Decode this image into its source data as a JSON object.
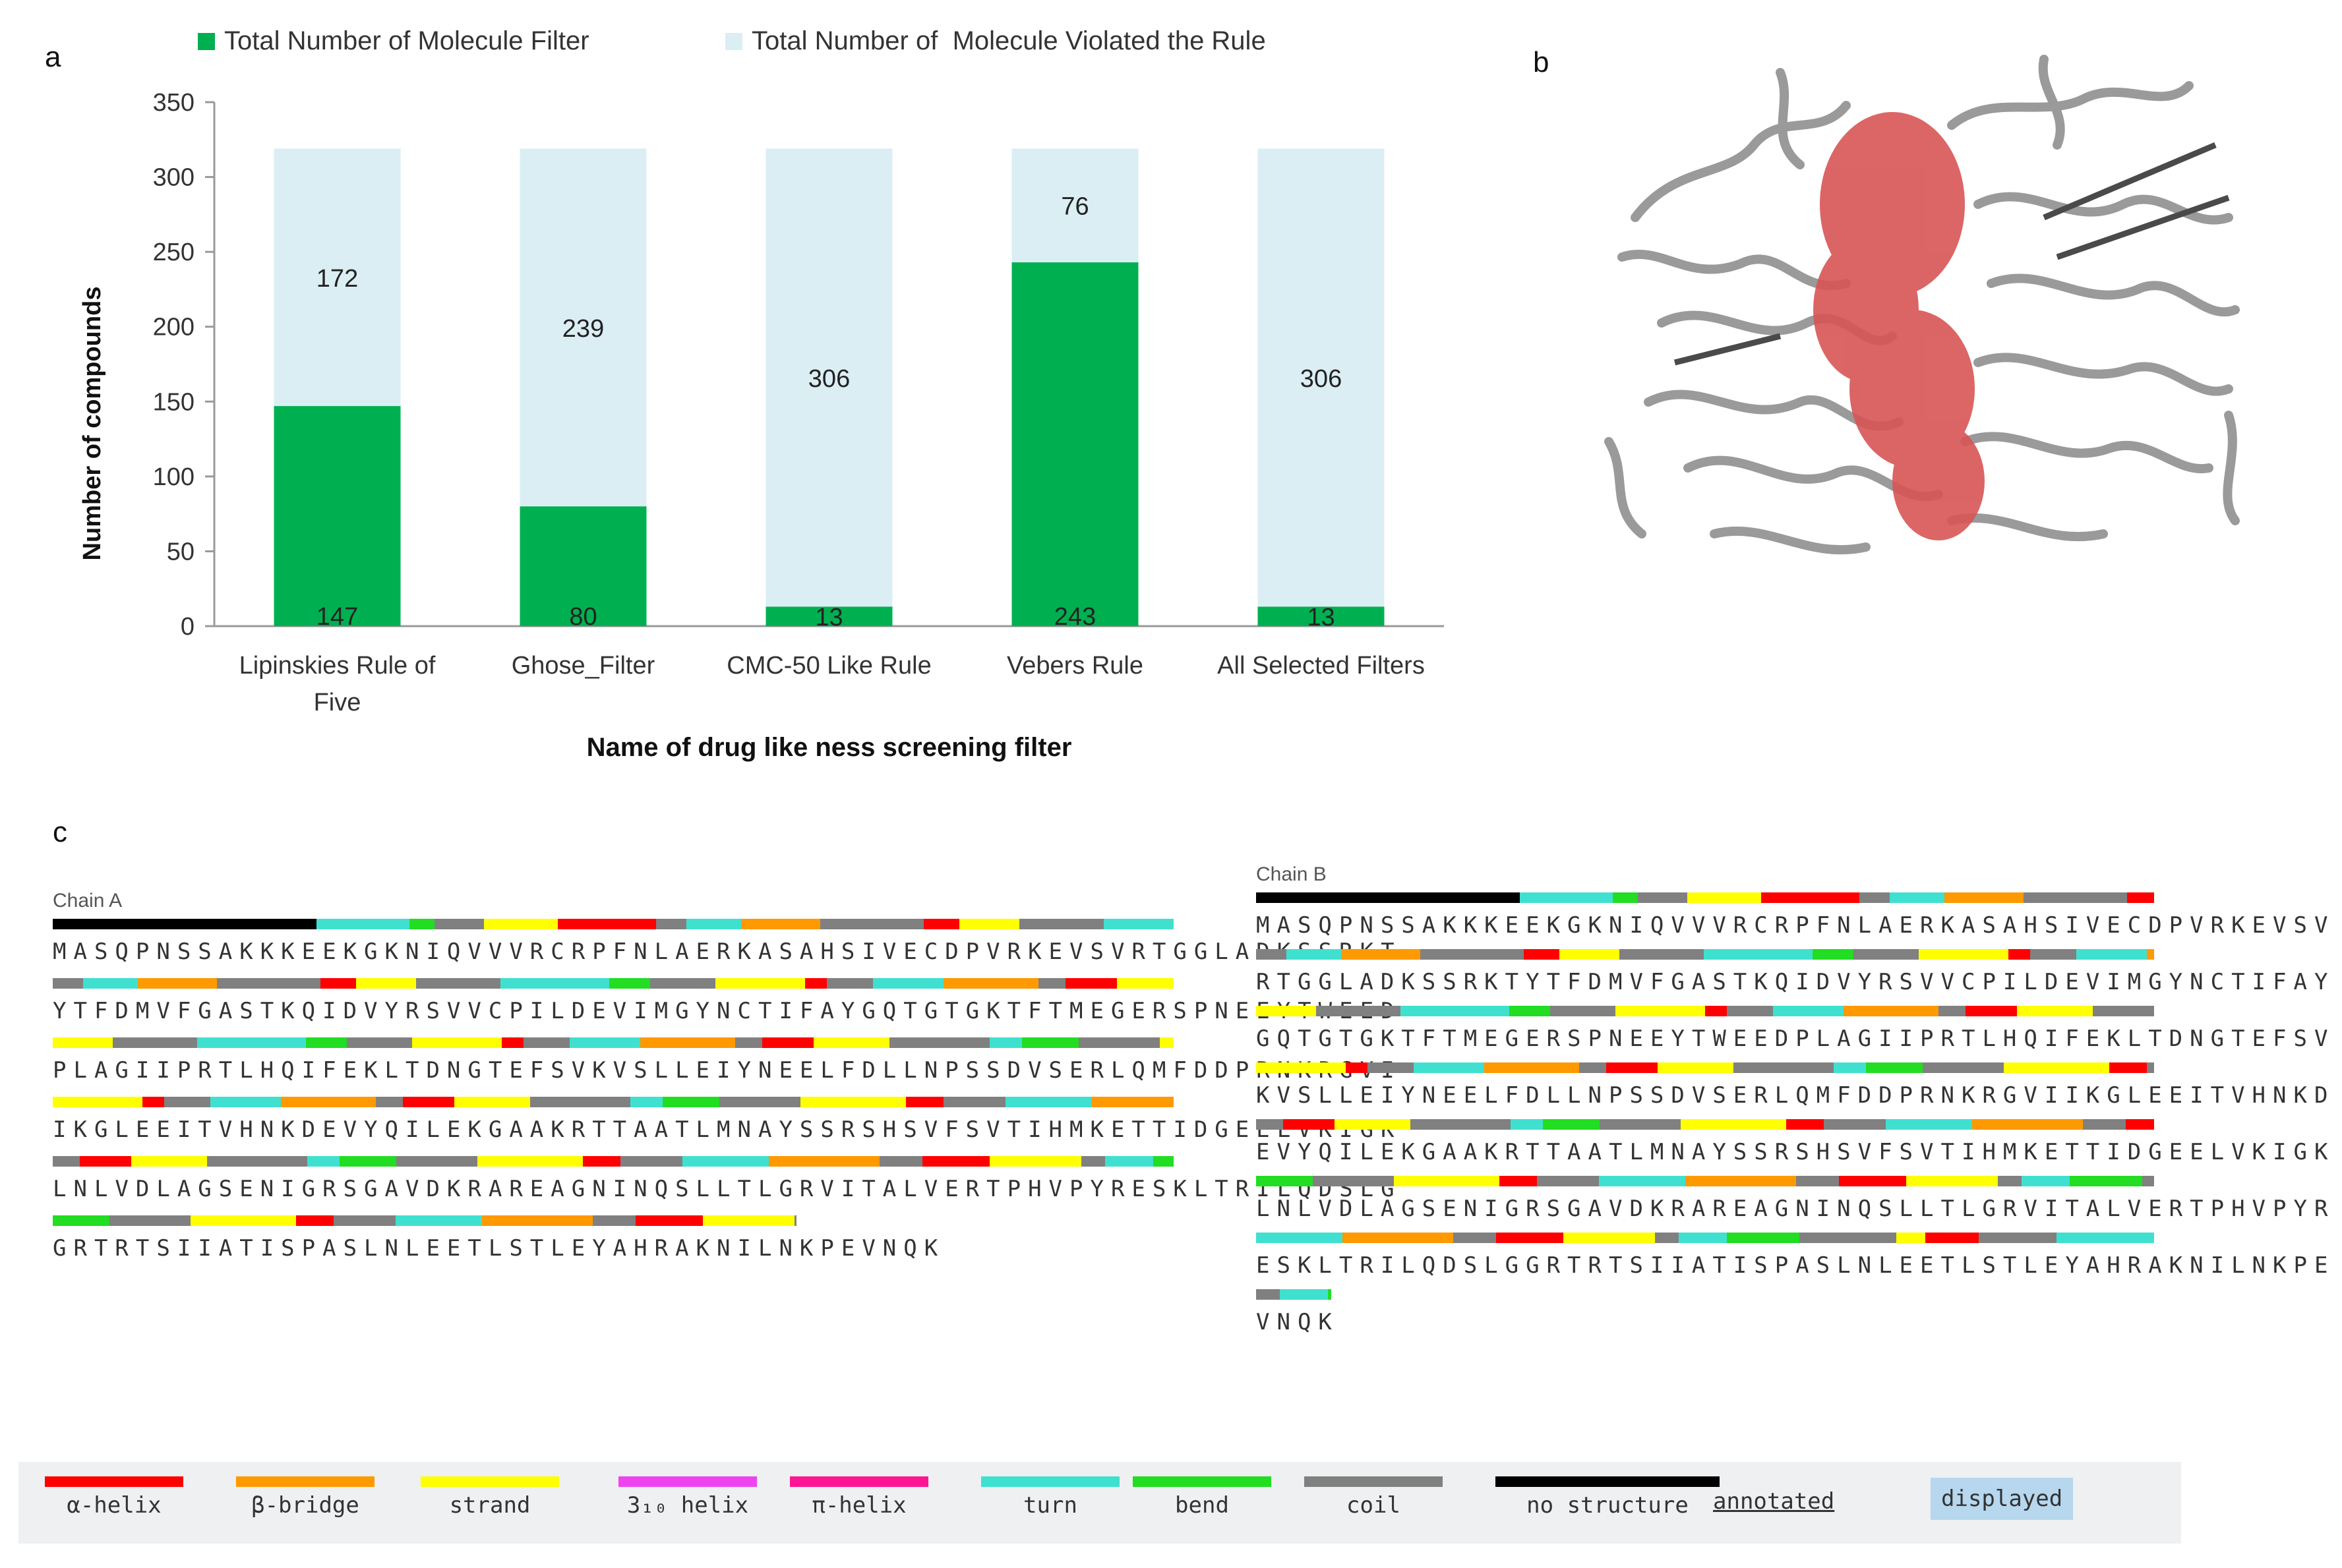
{
  "panels": {
    "a": "a",
    "b": "b",
    "c": "c"
  },
  "colors": {
    "filter": "#00b050",
    "violated": "#dbeef4",
    "alpha_helix": "#ff0000",
    "beta_bridge": "#ff9900",
    "strand": "#ffff00",
    "helix_310": "#ee44ee",
    "pi_helix": "#ff1493",
    "turn": "#40e0d0",
    "bend": "#22dd22",
    "coil": "#808080",
    "no_structure": "#000000",
    "displayed": "#b6d7ee",
    "protein": "#a0a0a0",
    "ligand": "#e06060"
  },
  "chart_data": {
    "type": "bar",
    "stacked": true,
    "categories": [
      "Lipinskies Rule of Five",
      "Ghose_Filter",
      "CMC-50 Like Rule",
      "Vebers Rule",
      "All Selected Filters"
    ],
    "category_lines": [
      [
        "Lipinskies Rule of",
        "Five"
      ],
      [
        "Ghose_Filter"
      ],
      [
        "CMC-50 Like Rule"
      ],
      [
        "Vebers Rule"
      ],
      [
        "All Selected Filters"
      ]
    ],
    "series": [
      {
        "name": "Total Number of Molecule Filter",
        "values": [
          147,
          80,
          13,
          243,
          13
        ]
      },
      {
        "name": "Total Number of  Molecule Violated the Rule",
        "values": [
          172,
          239,
          306,
          76,
          306
        ]
      }
    ],
    "labels_series_0": [
      "147",
      "80",
      "13",
      "243",
      "13"
    ],
    "labels_series_1": [
      "172",
      "239",
      "306",
      "76",
      "306"
    ],
    "xlabel": "Name of drug like ness screening filter",
    "ylabel": "Number of compounds",
    "ylim": [
      0,
      350
    ],
    "yticks": [
      "0",
      "50",
      "100",
      "150",
      "200",
      "250",
      "300",
      "350"
    ],
    "legend_position": "top"
  },
  "legend": [
    {
      "label": "Total Number of Molecule Filter"
    },
    {
      "label": "Total Number of  Molecule Violated the Rule"
    }
  ],
  "sequence_panel": {
    "chain_a": {
      "title": "Chain A",
      "lines": [
        "MASQPNSSAKKKEEKGKNIQVVVRCRPFNLAERKASAHSIVECDPVRKEVSVRTGGLADKSSRKT",
        "YTFDMVFGASTKQIDVYRSVVCPILDEVIMGYNCTIFAYGQTGTGKTFTMEGERSPNEEYTWEED",
        "PLAGIIPRTLHQIFEKLTDNGTEFSVKVSLLEIYNEELFDLLNPSSDVSERLQMFDDPRNKRGVI",
        "IKGLEEITVHNKDEVYQILEKGAAKRTTAATLMNAYSSRSHSVFSVTIHMKETTIDGEELVKIGK",
        "LNLVDLAGSENIGRSGAVDKRAREAGNINQSLLTLGRVITALVERTPHVPYRESKLTRILQDSLG",
        "GRTRTSIIATISPASLNLEETLSTLEYAHRAKNILNKPEVNQK"
      ]
    },
    "chain_b": {
      "title": "Chain B",
      "lines": [
        "MASQPNSSAKKKEEKGKNIQVVVRCRPFNLAERKASAHSIVECDPVRKEVSV",
        "RTGGLADKSSRKTYTFDMVFGASTKQIDVYRSVVCPILDEVIMGYNCTIFAY",
        "GQTGTGKTFTMEGERSPNEEYTWEEDPLAGIIPRTLHQIFEKLTDNGTEFSV",
        "KVSLLEIYNEELFDLLNPSSDVSERLQMFDDPRNKRGVIIKGLEEITVHNKD",
        "EVYQILEKGAAKRTTAATLMNAYSSRSHSVFSVTIHMKETTIDGEELVKIGK",
        "LNLVDLAGSENIGRSGAVDKRAREAGNINQSLLTLGRVITALVERTPHVPYR",
        "ESKLTRILQDSLGGRTRTSIIATISPASLNLEETLSTLEYAHRAKNILNKPE",
        "VNQK"
      ]
    }
  },
  "ss_legend": [
    {
      "label": "α-helix",
      "color": "#ff0000"
    },
    {
      "label": "β-bridge",
      "color": "#ff9900"
    },
    {
      "label": "strand",
      "color": "#ffff00"
    },
    {
      "label": "3₁₀ helix",
      "color": "#ee44ee"
    },
    {
      "label": "π-helix",
      "color": "#ff1493"
    },
    {
      "label": "turn",
      "color": "#40e0d0"
    },
    {
      "label": "bend",
      "color": "#22dd22"
    },
    {
      "label": "coil",
      "color": "#808080"
    },
    {
      "label": "no structure",
      "color": "#000000"
    },
    {
      "label": "annotated",
      "color": ""
    },
    {
      "label": "displayed",
      "color": "#b6d7ee"
    }
  ]
}
